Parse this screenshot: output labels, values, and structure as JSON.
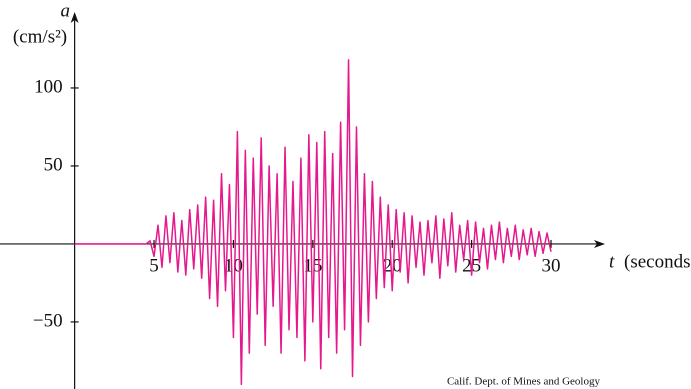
{
  "chart_data": {
    "type": "line",
    "y_label_symbol": "a",
    "y_label_units": "(cm/s²)",
    "x_label_symbol": "t",
    "x_label_units": "(seconds)",
    "source": "Calif. Dept. of Mines and Geology",
    "xlim": [
      -4.7,
      33.4
    ],
    "ylim": [
      -93,
      148.7
    ],
    "xticks": [
      5,
      10,
      15,
      20,
      25,
      30
    ],
    "yticks": [
      100,
      50,
      {
        "value": -50,
        "label": "−50"
      }
    ],
    "series": [
      {
        "color": "#e5198c",
        "x": [
          0,
          0.25,
          0.5,
          0.75,
          1,
          1.25,
          1.5,
          1.75,
          2,
          2.25,
          2.5,
          2.75,
          3,
          3.25,
          3.5,
          3.75,
          4,
          4.25,
          4.5,
          4.75,
          5,
          5.25,
          5.5,
          5.75,
          6,
          6.25,
          6.5,
          6.75,
          7,
          7.25,
          7.5,
          7.75,
          8,
          8.25,
          8.5,
          8.75,
          9,
          9.25,
          9.5,
          9.75,
          10,
          10.25,
          10.5,
          10.75,
          11,
          11.25,
          11.5,
          11.75,
          12,
          12.25,
          12.5,
          12.75,
          13,
          13.25,
          13.5,
          13.75,
          14,
          14.25,
          14.5,
          14.75,
          15,
          15.25,
          15.5,
          15.75,
          16,
          16.25,
          16.5,
          16.75,
          17,
          17.25,
          17.5,
          17.75,
          18,
          18.25,
          18.5,
          18.75,
          19,
          19.25,
          19.5,
          19.75,
          20,
          20.25,
          20.5,
          20.75,
          21,
          21.25,
          21.5,
          21.75,
          22,
          22.25,
          22.5,
          22.75,
          23,
          23.25,
          23.5,
          23.75,
          24,
          24.25,
          24.5,
          24.75,
          25,
          25.25,
          25.5,
          25.75,
          26,
          26.25,
          26.5,
          26.75,
          27,
          27.25,
          27.5,
          27.75,
          28,
          28.25,
          28.5,
          28.75,
          29,
          29.25,
          29.5,
          29.75,
          30
        ],
        "values": [
          0,
          0,
          0,
          0,
          0,
          0,
          0,
          0,
          0,
          0,
          0,
          0,
          0,
          0,
          0,
          0,
          0,
          0,
          0,
          2,
          -8,
          12,
          -15,
          18,
          -12,
          20,
          -18,
          15,
          -20,
          22,
          -16,
          25,
          -22,
          30,
          -35,
          28,
          -40,
          45,
          -30,
          38,
          -60,
          72,
          -90,
          60,
          -70,
          55,
          -45,
          68,
          -65,
          50,
          -40,
          45,
          -70,
          62,
          -55,
          40,
          -60,
          55,
          -75,
          70,
          -50,
          65,
          -80,
          72,
          -60,
          58,
          -70,
          78,
          -55,
          118,
          -85,
          75,
          -65,
          45,
          -50,
          40,
          -35,
          30,
          -28,
          25,
          -30,
          22,
          -18,
          20,
          -25,
          18,
          -15,
          14,
          -20,
          15,
          -12,
          18,
          -22,
          16,
          -14,
          20,
          -18,
          12,
          -10,
          15,
          -20,
          14,
          -12,
          10,
          -16,
          12,
          -10,
          14,
          -12,
          10,
          -8,
          12,
          -10,
          9,
          -7,
          10,
          -8,
          8,
          -6,
          7,
          -5
        ]
      }
    ]
  }
}
